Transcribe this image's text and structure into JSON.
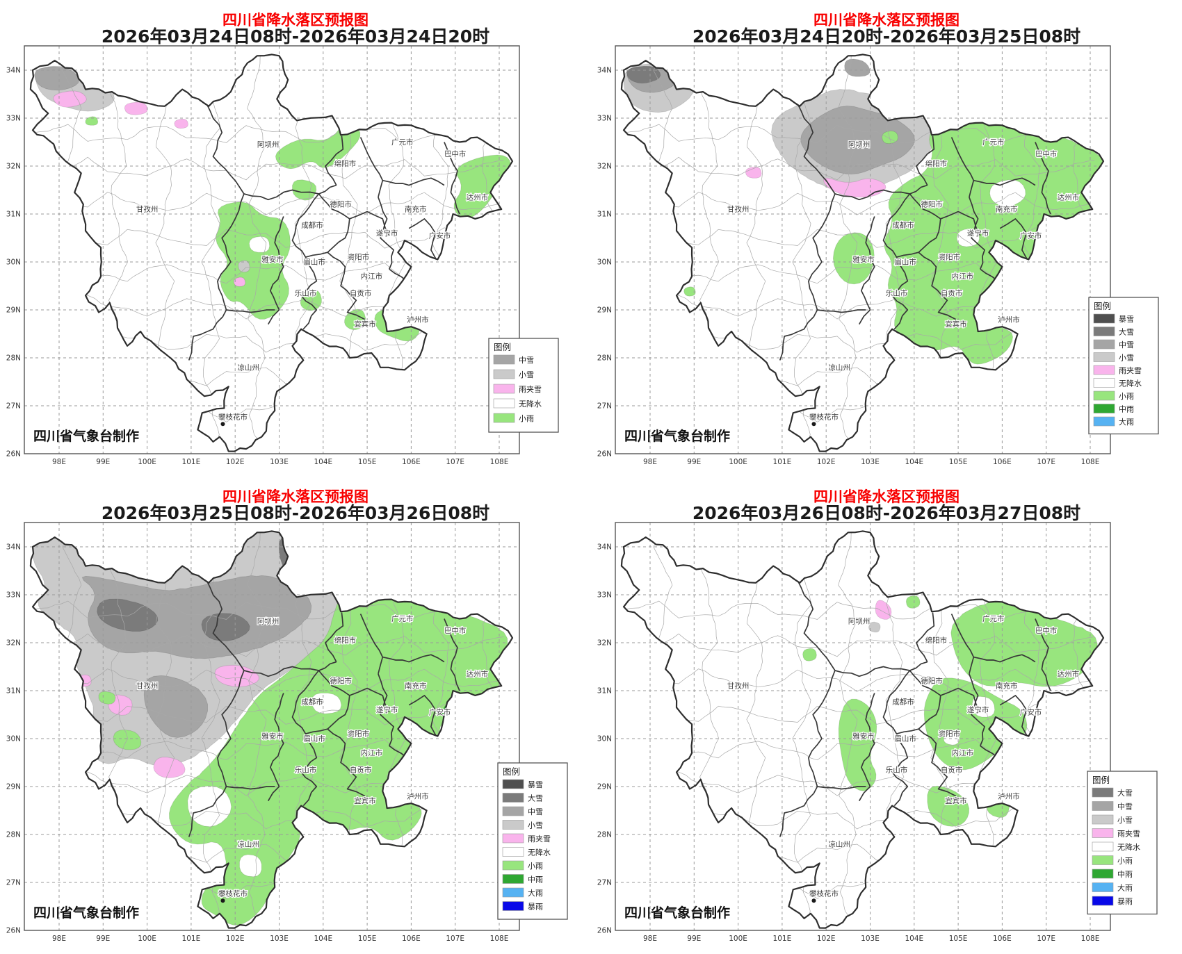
{
  "colors": {
    "title_red": "#f80000",
    "subtitle": "#1a1a1a",
    "frame": "#555555",
    "grid": "#9a9a9a",
    "boundary_bold": "#383838",
    "outline": "#2e2e2e",
    "county_line": "#a8a8a8",
    "city_label": "#3c3c3c",
    "attribution_color": "#111111"
  },
  "precip_colors": {
    "暴雪": "#4f4f4f",
    "大雪": "#7b7b7b",
    "中雪": "#a5a5a5",
    "小雪": "#cacaca",
    "雨夹雪": "#f9b4ec",
    "无降水": "#ffffff",
    "小雨": "#98e57e",
    "中雨": "#2fa732",
    "大雨": "#56b2f2",
    "暴雨": "#0808e8"
  },
  "axes": {
    "x_ticks": [
      "98E",
      "99E",
      "100E",
      "101E",
      "102E",
      "103E",
      "104E",
      "105E",
      "106E",
      "107E",
      "108E"
    ],
    "y_ticks": [
      "34N",
      "33N",
      "32N",
      "31N",
      "30N",
      "29N",
      "28N",
      "27N",
      "26N"
    ]
  },
  "legend_title": "图例",
  "attribution": "四川省气象台制作",
  "cities": [
    {
      "name": "甘孜州",
      "lon": 100.0,
      "lat": 31.05
    },
    {
      "name": "阿坝州",
      "lon": 102.75,
      "lat": 32.4
    },
    {
      "name": "绵阳市",
      "lon": 104.5,
      "lat": 32.0
    },
    {
      "name": "广元市",
      "lon": 105.8,
      "lat": 32.45
    },
    {
      "name": "巴中市",
      "lon": 107.0,
      "lat": 32.2
    },
    {
      "name": "达州市",
      "lon": 107.5,
      "lat": 31.3
    },
    {
      "name": "南充市",
      "lon": 106.1,
      "lat": 31.05
    },
    {
      "name": "德阳市",
      "lon": 104.4,
      "lat": 31.15
    },
    {
      "name": "成都市",
      "lon": 103.75,
      "lat": 30.72
    },
    {
      "name": "遂宁市",
      "lon": 105.45,
      "lat": 30.55
    },
    {
      "name": "广安市",
      "lon": 106.65,
      "lat": 30.5
    },
    {
      "name": "资阳市",
      "lon": 104.8,
      "lat": 30.05
    },
    {
      "name": "眉山市",
      "lon": 103.8,
      "lat": 29.95
    },
    {
      "name": "雅安市",
      "lon": 102.85,
      "lat": 30.0
    },
    {
      "name": "乐山市",
      "lon": 103.6,
      "lat": 29.3
    },
    {
      "name": "内江市",
      "lon": 105.1,
      "lat": 29.65
    },
    {
      "name": "自贡市",
      "lon": 104.85,
      "lat": 29.3
    },
    {
      "name": "宜宾市",
      "lon": 104.95,
      "lat": 28.65
    },
    {
      "name": "泸州市",
      "lon": 106.15,
      "lat": 28.75
    },
    {
      "name": "凉山州",
      "lon": 102.3,
      "lat": 27.75
    },
    {
      "name": "攀枝花市",
      "lon": 101.95,
      "lat": 26.72
    }
  ],
  "panels": [
    {
      "title": "四川省降水落区预报图",
      "subtitle": "2026年03月24日08时-2026年03月24日20时",
      "legend_items": [
        "中雪",
        "小雪",
        "雨夹雪",
        "无降水",
        "小雨"
      ]
    },
    {
      "title": "四川省降水落区预报图",
      "subtitle": "2026年03月24日20时-2026年03月25日08时",
      "legend_items": [
        "暴雪",
        "大雪",
        "中雪",
        "小雪",
        "雨夹雪",
        "无降水",
        "小雨",
        "中雨",
        "大雨"
      ]
    },
    {
      "title": "四川省降水落区预报图",
      "subtitle": "2026年03月25日08时-2026年03月26日08时",
      "legend_items": [
        "暴雪",
        "大雪",
        "中雪",
        "小雪",
        "雨夹雪",
        "无降水",
        "小雨",
        "中雨",
        "大雨",
        "暴雨"
      ]
    },
    {
      "title": "四川省降水落区预报图",
      "subtitle": "2026年03月26日08时-2026年03月27日08时",
      "legend_items": [
        "大雪",
        "中雪",
        "小雪",
        "雨夹雪",
        "无降水",
        "小雨",
        "中雨",
        "大雨",
        "暴雨"
      ]
    }
  ]
}
